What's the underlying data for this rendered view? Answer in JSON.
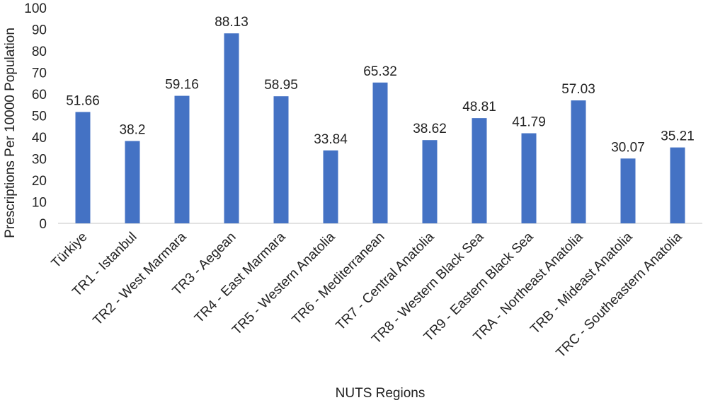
{
  "chart_data": {
    "type": "bar",
    "title": "",
    "xlabel": "NUTS Regions",
    "ylabel": "Prescriptions Per 10000 Population",
    "ylim": [
      0,
      100
    ],
    "ytick_step": 10,
    "yticks": [
      "0",
      "10",
      "20",
      "30",
      "40",
      "50",
      "60",
      "70",
      "80",
      "90",
      "100"
    ],
    "grid": false,
    "legend": "none",
    "bar_color": "#4472C4",
    "categories": [
      "Türkiye",
      "TR1 - Istanbul",
      "TR2 - West Marmara",
      "TR3 - Aegean",
      "TR4 - East Marmara",
      "TR5 - Western Anatolia",
      "TR6 - Mediterranean",
      "TR7 - Central Anatolia",
      "TR8 - Western Black Sea",
      "TR9 - Eastern Black Sea",
      "TRA - Northeast Anatolia",
      "TRB - Mideast Anatolia",
      "TRC - Southeastern Anatolia"
    ],
    "values": [
      51.66,
      38.2,
      59.16,
      88.13,
      58.95,
      33.84,
      65.32,
      38.62,
      48.81,
      41.79,
      57.03,
      30.07,
      35.21
    ],
    "data_labels": [
      "51.66",
      "38.2",
      "59.16",
      "88.13",
      "58.95",
      "33.84",
      "65.32",
      "38.62",
      "48.81",
      "41.79",
      "57.03",
      "30.07",
      "35.21"
    ]
  }
}
